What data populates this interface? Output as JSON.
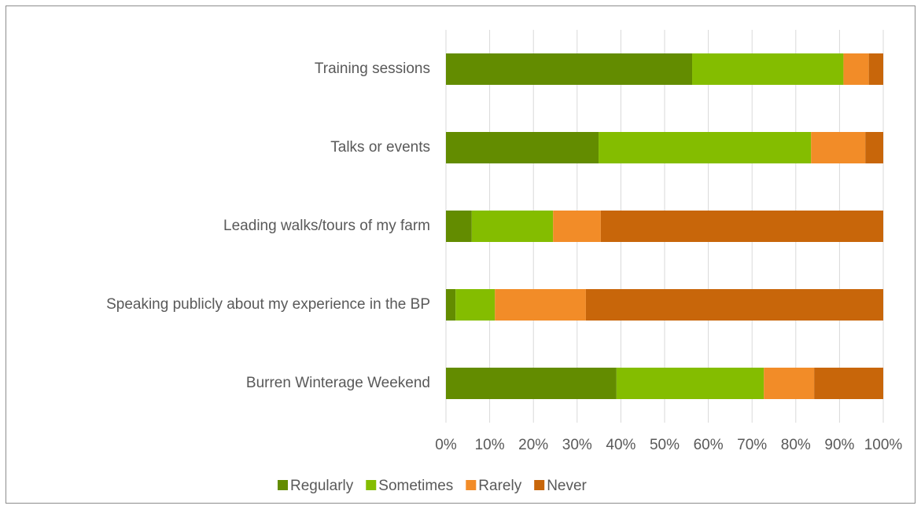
{
  "chart_data": {
    "type": "stacked_barh",
    "categories": [
      "Training sessions",
      "Talks or events",
      "Leading walks/tours of my farm",
      "Speaking publicly about my experience in the BP",
      "Burren Winterage Weekend"
    ],
    "series": [
      {
        "name": "Regularly",
        "color": "#638c00",
        "values": [
          56.3,
          34.9,
          5.9,
          2.2,
          39.0
        ]
      },
      {
        "name": "Sometimes",
        "color": "#84bd00",
        "values": [
          34.6,
          48.6,
          18.6,
          9.0,
          33.7
        ]
      },
      {
        "name": "Rarely",
        "color": "#f28c28",
        "values": [
          5.8,
          12.4,
          10.9,
          20.8,
          11.5
        ]
      },
      {
        "name": "Never",
        "color": "#c8660a",
        "values": [
          3.3,
          4.1,
          64.6,
          68.0,
          15.8
        ]
      }
    ],
    "xlim": [
      0,
      100
    ],
    "xticks": [
      {
        "value": 0,
        "label": "0%"
      },
      {
        "value": 10,
        "label": "10%"
      },
      {
        "value": 20,
        "label": "20%"
      },
      {
        "value": 30,
        "label": "30%"
      },
      {
        "value": 40,
        "label": "40%"
      },
      {
        "value": 50,
        "label": "50%"
      },
      {
        "value": 60,
        "label": "60%"
      },
      {
        "value": 70,
        "label": "70%"
      },
      {
        "value": 80,
        "label": "80%"
      },
      {
        "value": 90,
        "label": "90%"
      },
      {
        "value": 100,
        "label": "100%"
      }
    ],
    "grid": true,
    "legend": "bottom"
  }
}
